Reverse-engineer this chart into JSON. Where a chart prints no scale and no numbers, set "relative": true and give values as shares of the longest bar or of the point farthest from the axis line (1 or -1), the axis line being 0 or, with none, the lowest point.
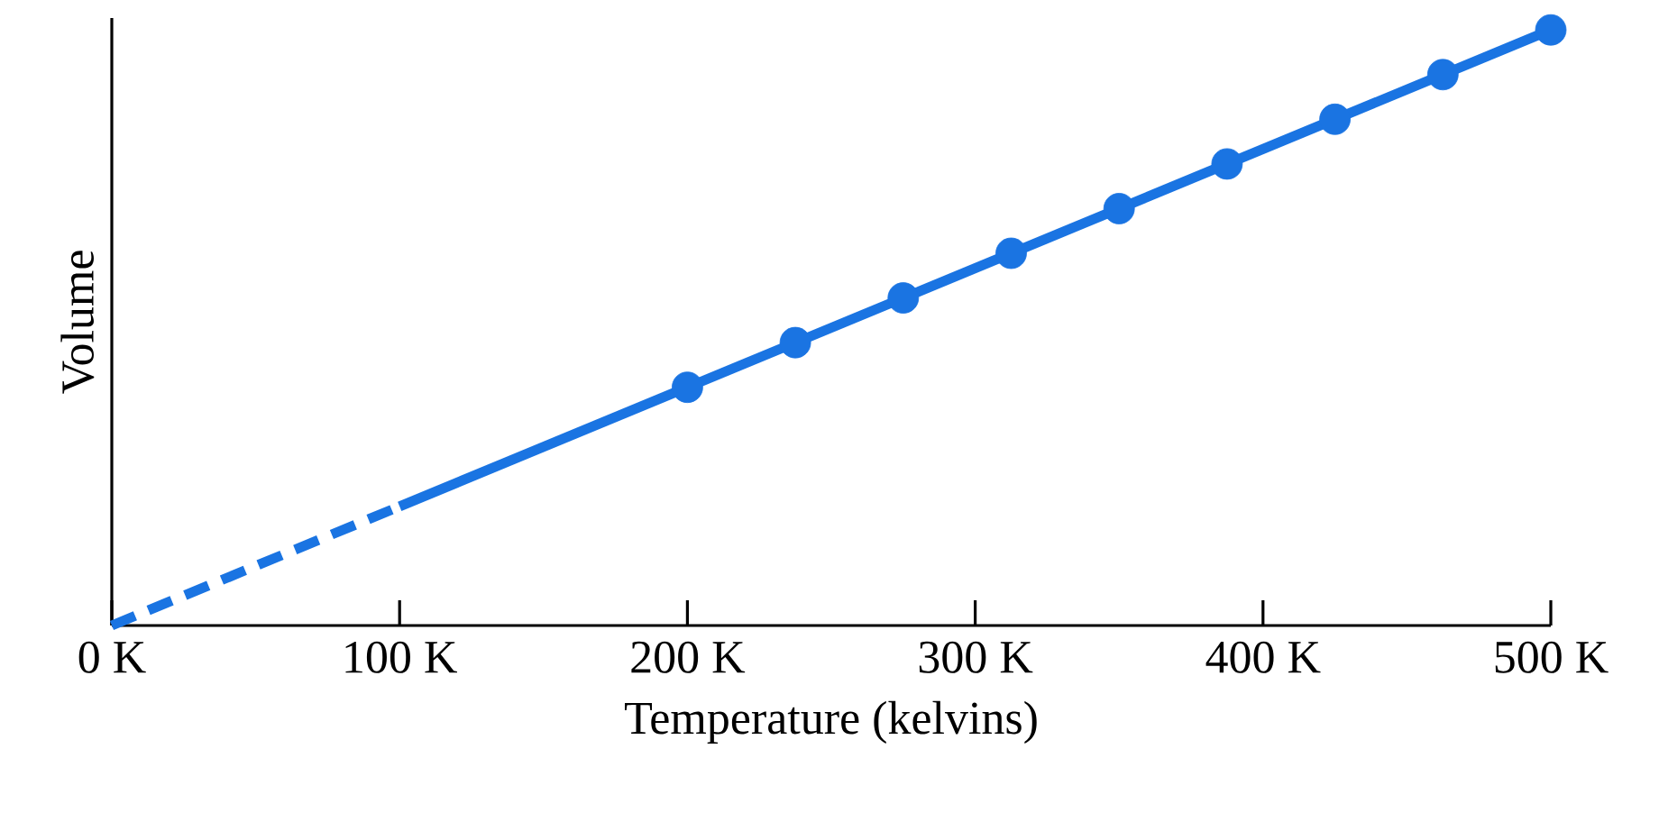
{
  "chart_data": {
    "type": "line",
    "relative": true,
    "xlabel": "Temperature (kelvins)",
    "ylabel": "Volume",
    "xlim": [
      0,
      500
    ],
    "xticks": [
      {
        "value": 0,
        "label": "0 K"
      },
      {
        "value": 100,
        "label": "100 K"
      },
      {
        "value": 200,
        "label": "200 K"
      },
      {
        "value": 300,
        "label": "300 K"
      },
      {
        "value": 400,
        "label": "400 K"
      },
      {
        "value": 500,
        "label": "500 K"
      }
    ],
    "series": [
      {
        "color": "#1a74e2",
        "x": [
          0,
          100
        ],
        "values": [
          0,
          0.2
        ],
        "line_style": "dashed",
        "marker": "none"
      },
      {
        "color": "#1a74e2",
        "x": [
          100,
          500
        ],
        "values": [
          0.2,
          1
        ],
        "line_style": "solid",
        "marker": "none"
      },
      {
        "type": "scatter",
        "color": "#1a74e2",
        "x": [
          200,
          237.5,
          275,
          312.5,
          350,
          387.5,
          425,
          462.5,
          500
        ],
        "values": [
          0.4,
          0.475,
          0.55,
          0.625,
          0.7,
          0.775,
          0.85,
          0.925,
          1
        ],
        "marker": "circle"
      }
    ]
  }
}
